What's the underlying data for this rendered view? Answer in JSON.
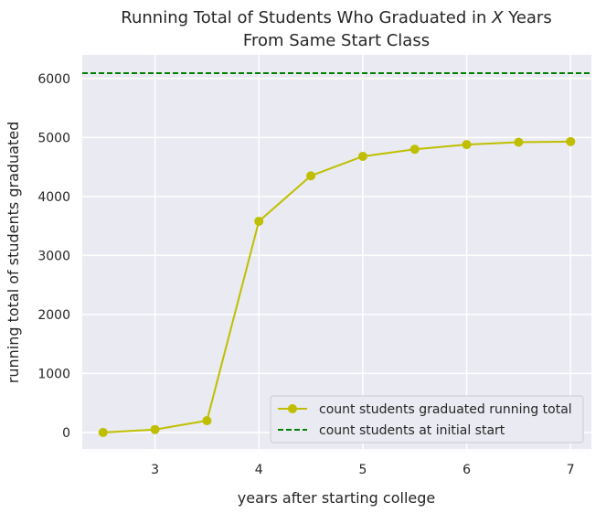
{
  "chart_data": {
    "type": "line",
    "title_line1": "Running Total of Students Who Graduated in X Years",
    "title_line2": "From Same Start Class",
    "xlabel": "years after starting college",
    "ylabel": "running total of students graduated",
    "xlim": [
      2.3,
      7.2
    ],
    "ylim": [
      -280,
      6400
    ],
    "xticks": [
      3,
      4,
      5,
      6,
      7
    ],
    "yticks": [
      0,
      1000,
      2000,
      3000,
      4000,
      5000,
      6000
    ],
    "grid": true,
    "legend_position": "lower-right",
    "series": [
      {
        "name": "count students graduated running total",
        "color": "#bfbf00",
        "marker": "circle",
        "x": [
          2.5,
          3,
          3.5,
          4,
          4.5,
          5,
          5.5,
          6,
          6.5,
          7
        ],
        "y": [
          0,
          50,
          200,
          3580,
          4350,
          4680,
          4800,
          4880,
          4920,
          4930
        ]
      }
    ],
    "hlines": [
      {
        "name": "count students at initial start",
        "color": "#008000",
        "style": "dashed",
        "y": 6090
      }
    ],
    "background_color": "#eaeaf2"
  }
}
